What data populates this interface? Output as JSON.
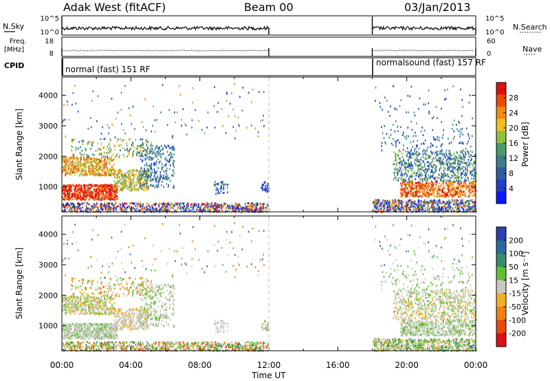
{
  "header": {
    "station": "Adak West (fitACF)",
    "beam": "Beam 00",
    "date": "03/Jan/2013"
  },
  "side_labels": {
    "nsky": "N.Sky",
    "freq_line1": "Freq.",
    "freq_line2": "[MHz]",
    "cpid": "CPID",
    "nsearch": "N.Search",
    "nave": "Nave"
  },
  "colors": {
    "power_scale": [
      "#0a1aff",
      "#1f3fc8",
      "#2c5fa8",
      "#3d7f8a",
      "#4a9a6a",
      "#8ec040",
      "#f0c020",
      "#f08a10",
      "#ee4a08",
      "#dd1010"
    ],
    "velocity_scale": [
      "#2a3fb0",
      "#2a6aa0",
      "#3a8c6a",
      "#60c030",
      "#c8c8c0",
      "#f0b020",
      "#f08010",
      "#ee4a08",
      "#e01010"
    ]
  },
  "chart_data": [
    {
      "type": "line",
      "name": "nsky-nsearch-panel",
      "y_left_ticks": [
        "10^5",
        "10^0"
      ],
      "y_right_ticks": [
        "10^5",
        "10^0"
      ],
      "segments_hours": [
        [
          0,
          12
        ],
        [
          18,
          24
        ]
      ]
    },
    {
      "type": "line",
      "name": "freq-nave-panel",
      "y_left_ticks": [
        "18",
        "8"
      ],
      "y_right_ticks": [
        "60",
        "0"
      ],
      "segments_hours": [
        [
          0,
          12
        ],
        [
          18,
          24
        ]
      ]
    },
    {
      "type": "table",
      "name": "cpid-panel",
      "entries": [
        {
          "start_hour": 0,
          "label": "normal (fast) 151 RF"
        },
        {
          "start_hour": 18,
          "label": "normalsound (fast) 157 RF"
        }
      ]
    },
    {
      "type": "heatmap",
      "name": "power-panel",
      "ylabel": "Slant Range [km]",
      "y_ticks": [
        1000,
        2000,
        3000,
        4000
      ],
      "ylim": [
        180,
        4600
      ],
      "xlim": [
        0,
        24
      ],
      "colorbar_label": "Power [dB]",
      "colorbar_ticks": [
        "28",
        "24",
        "20",
        "16",
        "12",
        "8",
        "4"
      ]
    },
    {
      "type": "heatmap",
      "name": "velocity-panel",
      "ylabel": "Slant Range [km]",
      "y_ticks": [
        1000,
        2000,
        3000,
        4000
      ],
      "ylim": [
        180,
        4600
      ],
      "xlim": [
        0,
        24
      ],
      "colorbar_label": "Velocity [m s⁻¹]",
      "colorbar_ticks": [
        "200",
        "100",
        "50",
        "15",
        "-15",
        "-50",
        "-100",
        "-200"
      ]
    },
    {
      "type": "table",
      "name": "time-axis",
      "x_ticks": [
        "00:00",
        "04:00",
        "08:00",
        "12:00",
        "16:00",
        "20:00",
        "00:00"
      ],
      "xlabel": "Time UT"
    }
  ]
}
